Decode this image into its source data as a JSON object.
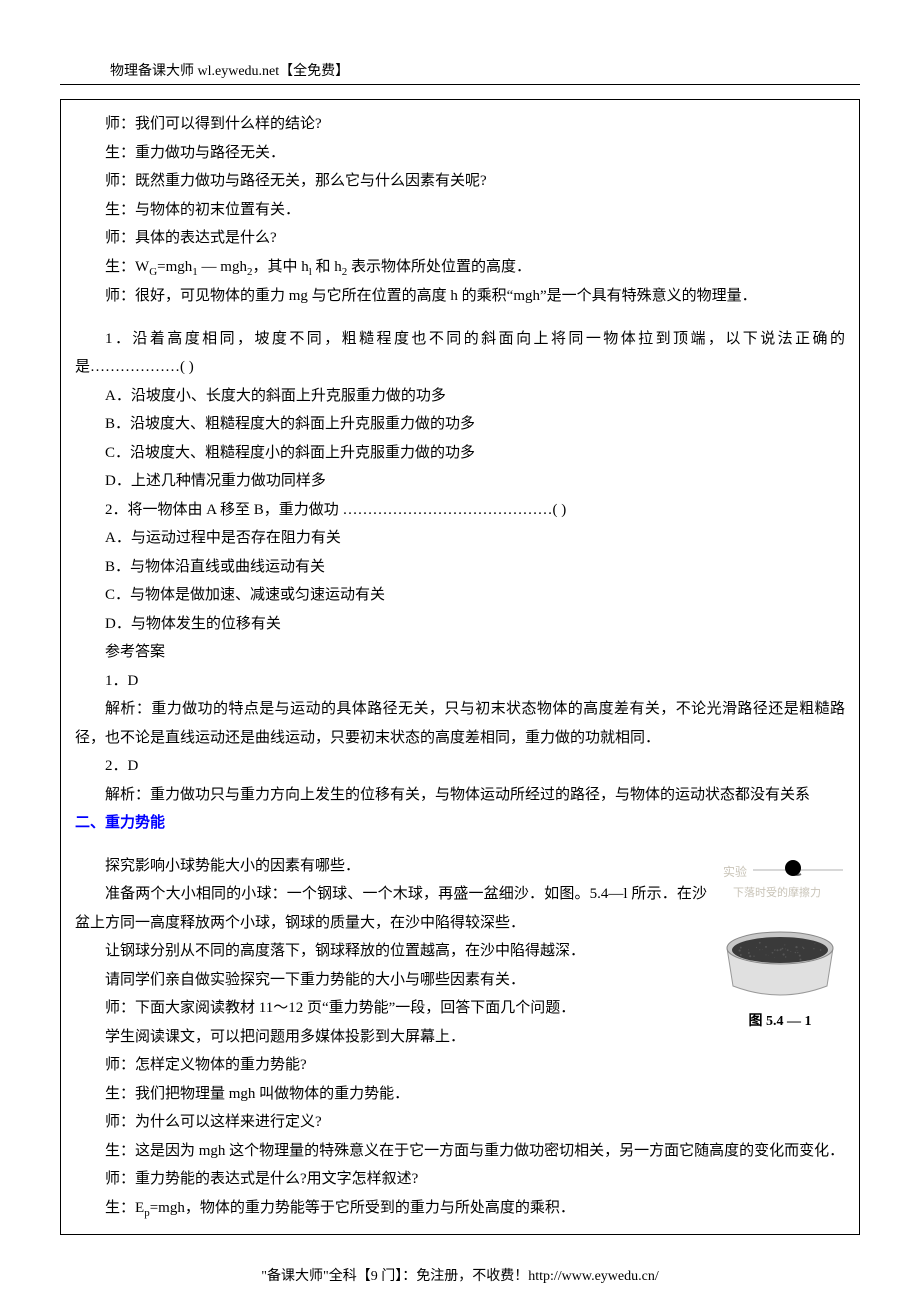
{
  "header": {
    "text": "物理备课大师  wl.eywedu.net【全免费】"
  },
  "body": {
    "lines": [
      {
        "text": "师：我们可以得到什么样的结论?",
        "indent": true
      },
      {
        "text": "生：重力做功与路径无关．",
        "indent": true
      },
      {
        "text": "师：既然重力做功与路径无关，那么它与什么因素有关呢?",
        "indent": true
      },
      {
        "text": "生：与物体的初末位置有关．",
        "indent": true
      },
      {
        "text": "师：具体的表达式是什么?",
        "indent": true
      },
      {
        "text": "生：W_G=mgh_1 — mgh_2，其中 h_l 和 h_2 表示物体所处位置的高度．",
        "indent": true,
        "subscripts": true
      },
      {
        "text": "师：很好，可见物体的重力 mg 与它所在位置的高度 h 的乘积“mgh”是一个具有特殊意义的物理量．",
        "indent": true,
        "wrap": true
      },
      {
        "spacer": true
      },
      {
        "text": "1．沿着高度相同，坡度不同，粗糙程度也不同的斜面向上将同一物体拉到顶端，以下说法正确的是………………(        )",
        "indent": true,
        "wrap": true
      },
      {
        "text": "A．沿坡度小、长度大的斜面上升克服重力做的功多",
        "indent": true
      },
      {
        "text": "B．沿坡度大、粗糙程度大的斜面上升克服重力做的功多",
        "indent": true
      },
      {
        "text": "C．沿坡度大、粗糙程度小的斜面上升克服重力做的功多",
        "indent": true
      },
      {
        "text": "D．上述几种情况重力做功同样多",
        "indent": true
      },
      {
        "text": "2．将一物体由 A 移至 B，重力做功   ……………………………………(        )",
        "indent": true
      },
      {
        "text": "A．与运动过程中是否存在阻力有关",
        "indent": true
      },
      {
        "text": "B．与物体沿直线或曲线运动有关",
        "indent": true
      },
      {
        "text": "C．与物体是做加速、减速或匀速运动有关",
        "indent": true
      },
      {
        "text": "D．与物体发生的位移有关",
        "indent": true
      },
      {
        "text": "参考答案",
        "indent": true
      },
      {
        "text": "1．D",
        "indent": true
      },
      {
        "text": "解析：重力做功的特点是与运动的具体路径无关，只与初末状态物体的高度差有关，不论光滑路径还是粗糙路径，也不论是直线运动还是曲线运动，只要初末状态的高度差相同，重力做的功就相同．",
        "indent": true,
        "wrap": true
      },
      {
        "text": "2．D",
        "indent": true
      },
      {
        "text": "解析：重力做功只与重力方向上发生的位移有关，与物体运动所经过的路径，与物体的运动状态都没有关系",
        "indent": true,
        "wrap": true
      },
      {
        "text": "二、重力势能",
        "blue": true,
        "bold": true
      },
      {
        "spacer": true
      },
      {
        "figure": true
      },
      {
        "text": "探究影响小球势能大小的因素有哪些．",
        "indent": true
      },
      {
        "text": "准备两个大小相同的小球：一个钢球、一个木球，再盛一盆细沙．如图。5.4—l 所示．在沙盆上方同一高度释放两个小球，钢球的质量大，在沙中陷得较深些．",
        "indent": true,
        "wrap": true
      },
      {
        "text": "让钢球分别从不同的高度落下，钢球释放的位置越高，在沙中陷得越深．",
        "indent": true
      },
      {
        "text": "请同学们亲自做实验探究一下重力势能的大小与哪些因素有关．",
        "indent": true
      },
      {
        "text": "师：下面大家阅读教材 11～12 页“重力势能”一段，回答下面几个问题．",
        "indent": true
      },
      {
        "text": "学生阅读课文，可以把问题用多媒体投影到大屏幕上．",
        "indent": true
      },
      {
        "text": "师：怎样定义物体的重力势能?",
        "indent": true
      },
      {
        "text": "生：我们把物理量 mgh 叫做物体的重力势能．",
        "indent": true
      },
      {
        "text": "师：为什么可以这样来进行定义?",
        "indent": true
      },
      {
        "text": "生：这是因为 mgh 这个物理量的特殊意义在于它一方面与重力做功密切相关，另一方面它随高度的变化而变化．",
        "indent": true,
        "wrap": true
      },
      {
        "text": "师：重力势能的表达式是什么?用文字怎样叙述?",
        "indent": true
      },
      {
        "text": "生：E_p=mgh，物体的重力势能等于它所受到的重力与所处高度的乘积．",
        "indent": true,
        "subscripts": true
      }
    ]
  },
  "figure": {
    "caption": "图 5.4 — 1",
    "colors": {
      "ball": "#000000",
      "ball_shadow": "#6a6a6a",
      "line": "#b0b0b0",
      "bowl_rim": "#c8c8c8",
      "bowl_side": "#e0e0e0",
      "sand_top": "#3a3a3a",
      "sand_texture": "#f0e6d2",
      "faint_text": "#c9c4b8"
    }
  },
  "footer": {
    "text": "\"备课大师\"全科【9 门】：免注册，不收费！http://www.eywedu.cn/"
  },
  "style": {
    "body_fontsize": 15,
    "line_height": 1.9,
    "text_color": "#000000",
    "blue_color": "#0000ff",
    "background": "#ffffff"
  }
}
